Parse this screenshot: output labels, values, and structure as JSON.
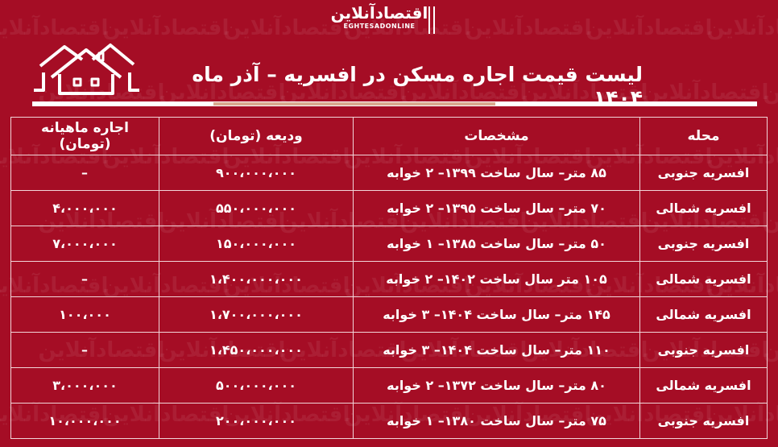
{
  "brand": {
    "logo_fa": "اقتصادآنلاین",
    "logo_en": "EGHTESADONLINE",
    "accent": "#a50d25",
    "divider_accent": "#d9a98f"
  },
  "header": {
    "title": "لیست قیمت اجاره مسکن در افسریه – آذر ماه ۱۴۰۴",
    "icon": "houses-icon"
  },
  "table": {
    "columns": [
      "محله",
      "مشخصات",
      "ودیعه (تومان)",
      "اجاره ماهیانه (تومان)"
    ],
    "rows": [
      {
        "area": "افسریه جنوبی",
        "spec": "۸۵ متر– سال ساخت ۱۳۹۹– ۲ خوابه",
        "deposit": "۹۰۰،۰۰۰،۰۰۰",
        "rent": "–"
      },
      {
        "area": "افسریه شمالی",
        "spec": "۷۰ متر– سال ساخت ۱۳۹۵– ۲ خوابه",
        "deposit": "۵۵۰،۰۰۰،۰۰۰",
        "rent": "۴،۰۰۰،۰۰۰"
      },
      {
        "area": "افسریه جنوبی",
        "spec": "۵۰ متر– سال ساخت ۱۳۸۵– ۱ خوابه",
        "deposit": "۱۵۰،۰۰۰،۰۰۰",
        "rent": "۷،۰۰۰،۰۰۰"
      },
      {
        "area": "افسریه شمالی",
        "spec": "۱۰۵ متر سال ساخت ۱۴۰۲– ۲ خوابه",
        "deposit": "۱،۴۰۰،۰۰۰،۰۰۰",
        "rent": "–"
      },
      {
        "area": "افسریه شمالی",
        "spec": "۱۴۵ متر– سال ساخت ۱۴۰۴– ۳ خوابه",
        "deposit": "۱،۷۰۰،۰۰۰،۰۰۰",
        "rent": "۱۰۰،۰۰۰"
      },
      {
        "area": "افسریه جنوبی",
        "spec": "۱۱۰ متر– سال ساخت ۱۴۰۴– ۳ خوابه",
        "deposit": "۱،۴۵۰،۰۰۰،۰۰۰",
        "rent": "–"
      },
      {
        "area": "افسریه شمالی",
        "spec": "۸۰ متر– سال ساخت ۱۳۷۲– ۲ خوابه",
        "deposit": "۵۰۰،۰۰۰،۰۰۰",
        "rent": "۳،۰۰۰،۰۰۰"
      },
      {
        "area": "افسریه جنوبی",
        "spec": "۷۵ متر– سال ساخت ۱۳۸۰– ۱ خوابه",
        "deposit": "۲۰۰،۰۰۰،۰۰۰",
        "rent": "۱۰،۰۰۰،۰۰۰"
      }
    ]
  }
}
